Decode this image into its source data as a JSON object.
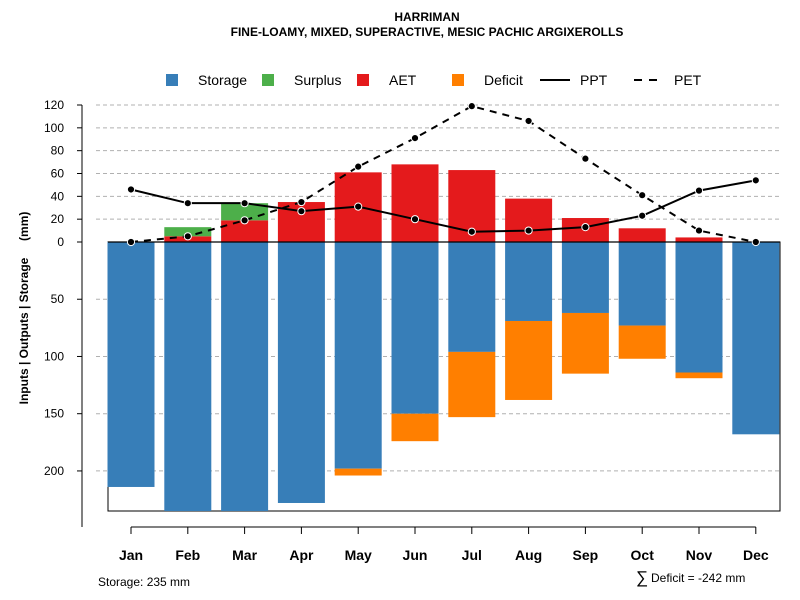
{
  "chart_data": {
    "type": "bar",
    "title": "HARRIMAN",
    "subtitle": "FINE-LOAMY, MIXED, SUPERACTIVE, MESIC PACHIC ARGIXEROLLS",
    "ylabel": "Inputs | Outputs | Storage     (mm)",
    "categories": [
      "Jan",
      "Feb",
      "Mar",
      "Apr",
      "May",
      "Jun",
      "Jul",
      "Aug",
      "Sep",
      "Oct",
      "Nov",
      "Dec"
    ],
    "upper_axis": {
      "ylim": [
        0,
        120
      ],
      "ticks": [
        "0",
        "20",
        "40",
        "60",
        "80",
        "100",
        "120"
      ],
      "tick_values": [
        0,
        20,
        40,
        60,
        80,
        100,
        120
      ]
    },
    "lower_axis": {
      "ylim": [
        0,
        235
      ],
      "ticks": [
        "50",
        "100",
        "150",
        "200"
      ],
      "tick_values": [
        50,
        100,
        150,
        200
      ]
    },
    "series": [
      {
        "name": "AET",
        "kind": "bar-up",
        "color": "#E41A1C",
        "values": [
          0,
          5,
          19,
          35,
          61,
          68,
          63,
          38,
          21,
          12,
          4,
          0
        ]
      },
      {
        "name": "Surplus",
        "kind": "bar-up-stacked",
        "color": "#4DAF4A",
        "values": [
          0,
          8,
          15,
          0,
          0,
          0,
          0,
          0,
          0,
          0,
          0,
          0
        ]
      },
      {
        "name": "Storage",
        "kind": "bar-down",
        "color": "#377EB8",
        "values": [
          214,
          235,
          235,
          228,
          198,
          150,
          96,
          69,
          62,
          73,
          114,
          168
        ]
      },
      {
        "name": "Deficit",
        "kind": "bar-down-stacked",
        "color": "#FF7F00",
        "values": [
          0,
          0,
          0,
          0,
          6,
          24,
          57,
          69,
          53,
          29,
          5,
          0
        ]
      },
      {
        "name": "PPT",
        "kind": "line",
        "color": "#000000",
        "dash": "solid",
        "values": [
          46,
          34,
          34,
          27,
          31,
          20,
          9,
          10,
          13,
          23,
          45,
          54
        ]
      },
      {
        "name": "PET",
        "kind": "line",
        "color": "#000000",
        "dash": "dashed",
        "values": [
          0,
          5,
          19,
          35,
          66,
          91,
          119,
          106,
          73,
          41,
          10,
          0
        ]
      }
    ],
    "legend": [
      {
        "label": "Storage",
        "color": "#377EB8",
        "type": "box"
      },
      {
        "label": "Surplus",
        "color": "#4DAF4A",
        "type": "box"
      },
      {
        "label": "AET",
        "color": "#E41A1C",
        "type": "box"
      },
      {
        "label": "Deficit",
        "color": "#FF7F00",
        "type": "box"
      },
      {
        "label": "PPT",
        "color": "#000000",
        "type": "solid-line"
      },
      {
        "label": "PET",
        "color": "#000000",
        "type": "dashed-line"
      }
    ],
    "legend_position": "top",
    "grid": true,
    "storage_note": "Storage: 235 mm",
    "deficit_note_symbol": "∑",
    "deficit_note": "Deficit = -242 mm"
  }
}
